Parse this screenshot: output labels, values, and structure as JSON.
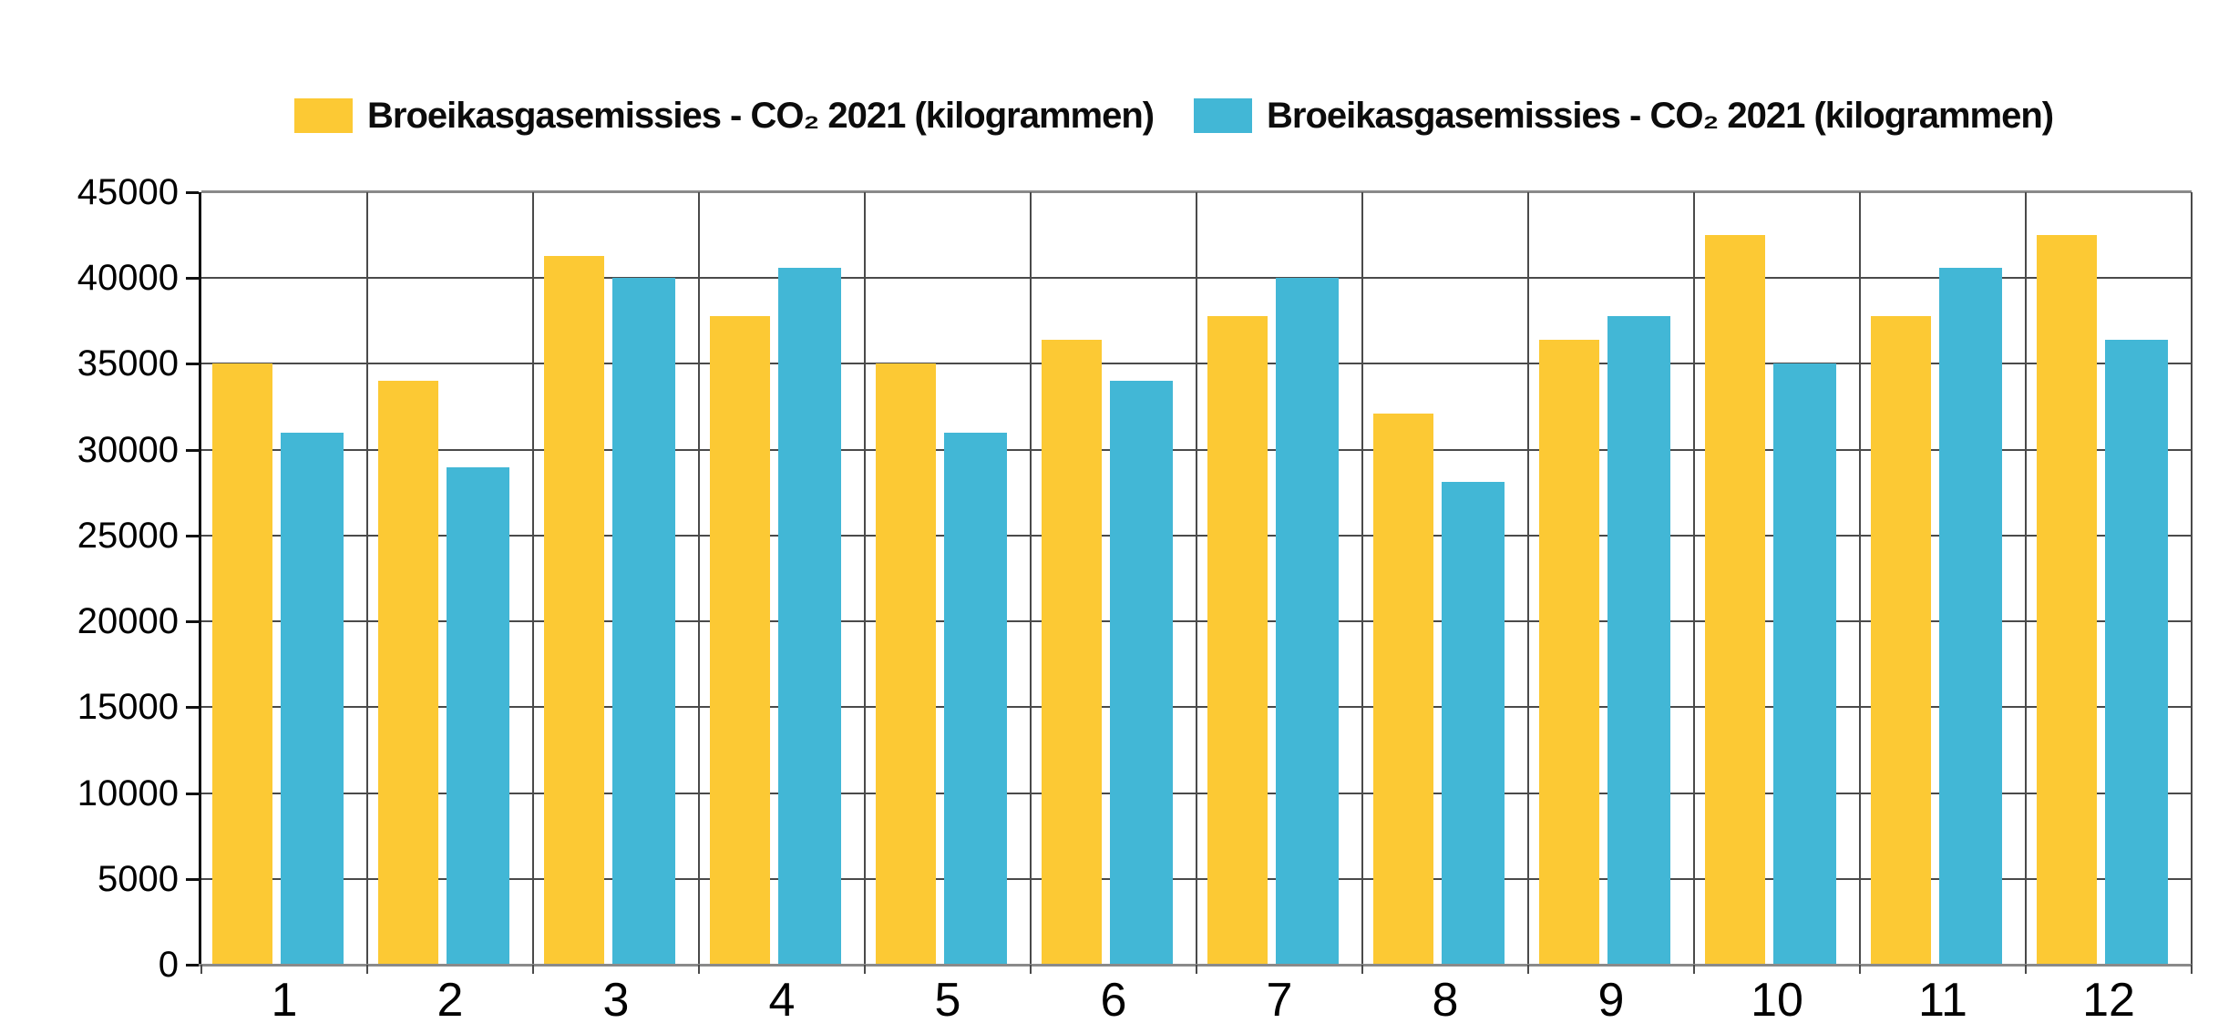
{
  "legend": {
    "items": [
      {
        "label": "Broeikasgasemissies - CO₂ 2021 (kilogrammen)",
        "color": "#FCC934"
      },
      {
        "label": "Broeikasgasemissies - CO₂ 2021 (kilogrammen)",
        "color": "#42B7D6"
      }
    ]
  },
  "chart_data": {
    "type": "bar",
    "title": "",
    "categories": [
      "1",
      "2",
      "3",
      "4",
      "5",
      "6",
      "7",
      "8",
      "9",
      "10",
      "11",
      "12"
    ],
    "series": [
      {
        "name": "Broeikasgasemissies - CO₂ 2021 (kilogrammen)",
        "color": "#FCC934",
        "values": [
          35000,
          34000,
          41300,
          37800,
          35000,
          36400,
          37800,
          32100,
          36400,
          42500,
          37800,
          42500
        ]
      },
      {
        "name": "Broeikasgasemissies - CO₂ 2021 (kilogrammen)",
        "color": "#42B7D6",
        "values": [
          31000,
          29000,
          40000,
          40600,
          31000,
          34000,
          40000,
          28100,
          37800,
          35000,
          40600,
          36400
        ]
      }
    ],
    "xlabel": "",
    "ylabel": "",
    "ylim": [
      0,
      45000
    ],
    "yticks": [
      0,
      5000,
      10000,
      15000,
      20000,
      25000,
      30000,
      35000,
      40000,
      45000
    ],
    "grid": true,
    "legend_position": "top"
  }
}
